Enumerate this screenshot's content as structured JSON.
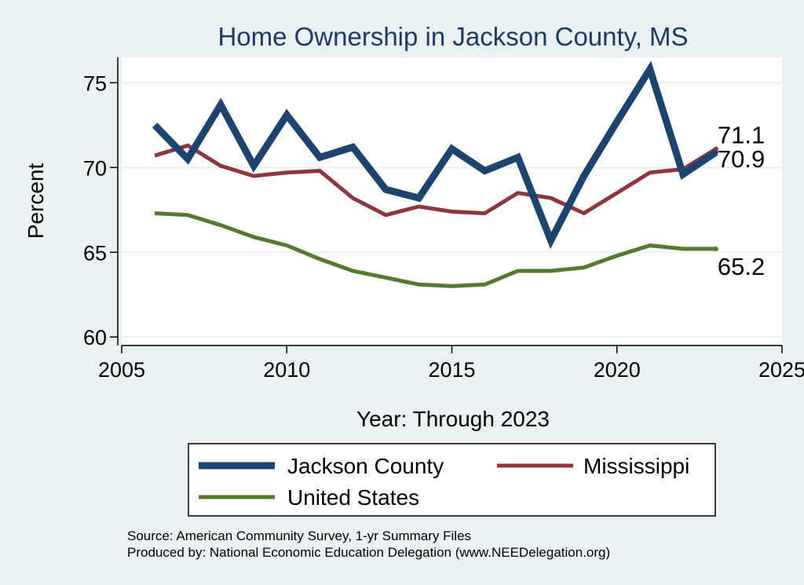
{
  "chart_data": {
    "type": "line",
    "title": "Home Ownership in Jackson County, MS",
    "xlabel": "Year: Through 2023",
    "ylabel": "Percent",
    "xlim": [
      2005,
      2025
    ],
    "ylim": [
      59.5,
      76.5
    ],
    "x_ticks": [
      "2005",
      "2010",
      "2015",
      "2020",
      "2025"
    ],
    "y_ticks": [
      "60",
      "65",
      "70",
      "75"
    ],
    "grid": true,
    "x": [
      2006,
      2007,
      2008,
      2009,
      2010,
      2011,
      2012,
      2013,
      2014,
      2015,
      2016,
      2017,
      2018,
      2019,
      2020,
      2021,
      2022,
      2023
    ],
    "series": [
      {
        "name": "Jackson County",
        "color": "#1b4470",
        "values": [
          72.5,
          70.5,
          73.7,
          70.1,
          73.1,
          70.6,
          71.2,
          68.7,
          68.2,
          71.1,
          69.8,
          70.6,
          65.7,
          69.5,
          72.7,
          75.8,
          69.6,
          70.9
        ],
        "end_label": "70.9"
      },
      {
        "name": "Mississippi",
        "color": "#8e3540",
        "values": [
          70.7,
          71.3,
          70.1,
          69.5,
          69.7,
          69.8,
          68.2,
          67.2,
          67.7,
          67.4,
          67.3,
          68.5,
          68.2,
          67.3,
          68.5,
          69.7,
          69.9,
          71.1
        ],
        "end_label": "71.1"
      },
      {
        "name": "United States",
        "color": "#55792f",
        "values": [
          67.3,
          67.2,
          66.6,
          65.9,
          65.4,
          64.6,
          63.9,
          63.5,
          63.1,
          63.0,
          63.1,
          63.9,
          63.9,
          64.1,
          64.8,
          65.4,
          65.2,
          65.2
        ],
        "end_label": "65.2"
      }
    ],
    "legend": {
      "placement": "bottom",
      "entries": [
        "Jackson County",
        "Mississippi",
        "United States"
      ]
    },
    "source_lines": [
      "Source: American Community Survey, 1-yr Summary Files",
      "Produced by: National Economic Education Delegation (www.NEEDelegation.org)"
    ]
  }
}
